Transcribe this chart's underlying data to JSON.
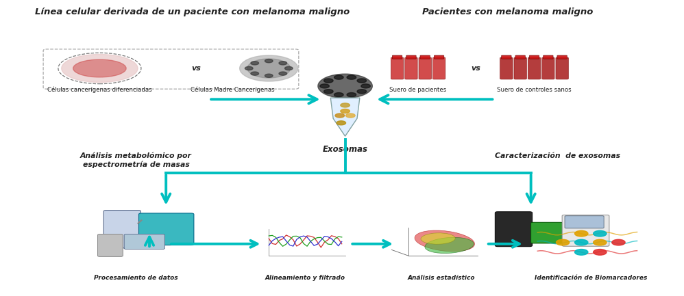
{
  "background_color": "#ffffff",
  "title_top_left": "Línea celular derivada de un paciente con melanoma maligno",
  "title_top_right": "Pacientes con melanoma maligno",
  "label_cell1": "Células cancerígenas diferenciadas",
  "label_cell2": "Células Madre Cancerígenas",
  "label_serum1": "Suero de pacientes",
  "label_serum2": "Suero de controles sanos",
  "label_exosomas": "Exosomas",
  "label_metabolomico": "Análisis metabolómico por\nespectrometría de masas",
  "label_caracterizacion": "Caracterización  de exosomas",
  "label_procesamiento": "Procesamiento de datos",
  "label_alineamiento": "Alineamiento y filtrado",
  "label_estadistico": "Análisis estadístico",
  "label_biomarcadores": "Identificación de Biomarcadores",
  "arrow_color": "#00BFBF",
  "text_color": "#222222",
  "figsize": [
    9.98,
    4.33
  ],
  "dpi": 100
}
